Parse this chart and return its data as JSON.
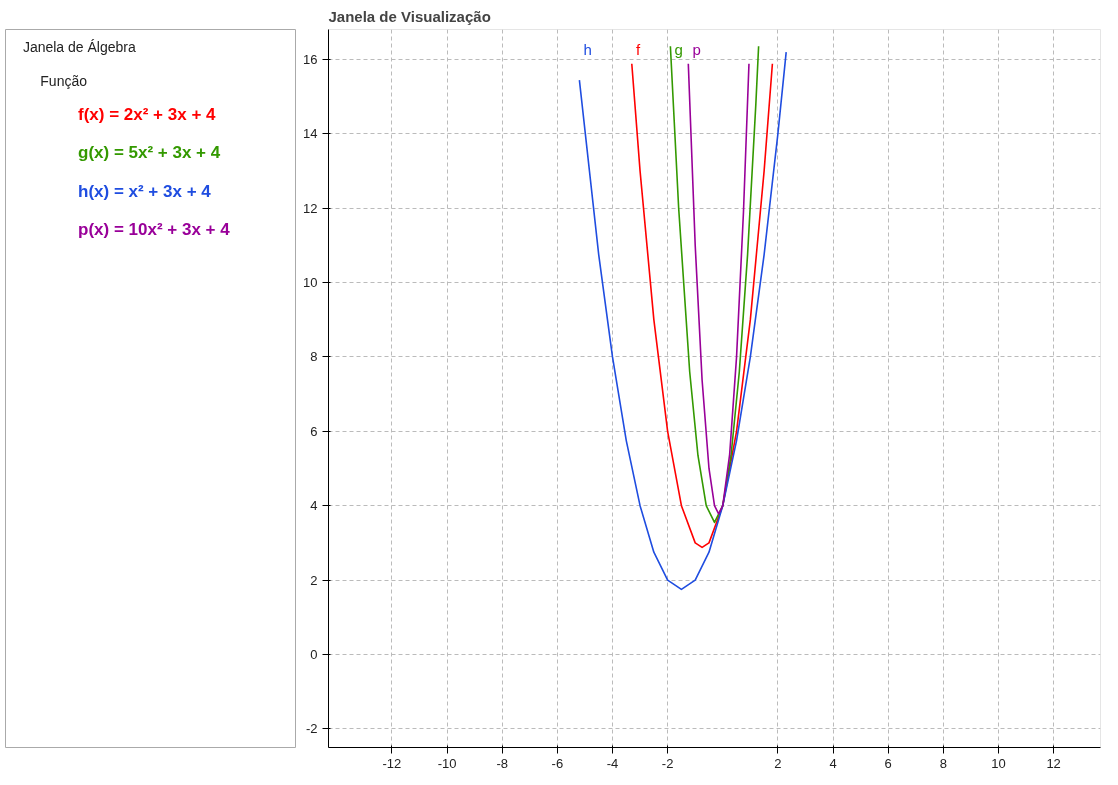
{
  "chart_data": {
    "type": "line",
    "title": "Janela de Visualização",
    "annotations": [
      "Janela de Álgebra",
      "Função",
      "f(x) = 2x² + 3x + 4",
      "g(x) = 5x² + 3x + 4",
      "h(x) = x² + 3x + 4",
      "p(x) = 10x² + 3x + 4"
    ],
    "xlim": [
      -14.3,
      13.7
    ],
    "ylim": [
      -2.5,
      16.8
    ],
    "xticks": [
      -12,
      -10,
      -8,
      -6,
      -4,
      -2,
      2,
      4,
      6,
      8,
      10,
      12
    ],
    "yticks": [
      -2,
      0,
      2,
      4,
      6,
      8,
      10,
      12,
      14,
      16
    ],
    "grid": true,
    "legend": false,
    "marker": "none",
    "line_style": "solid",
    "series": [
      {
        "name": "f",
        "color": "#ff0000",
        "x": [
          -3.3,
          -3,
          -2.5,
          -2,
          -1.5,
          -1,
          -0.75,
          -0.5,
          0,
          0.5,
          1,
          1.5,
          1.8
        ],
        "values": [
          15.88,
          13,
          9,
          6,
          4,
          3,
          2.88,
          3,
          4,
          6,
          9,
          13,
          15.88
        ]
      },
      {
        "name": "g",
        "color": "#339900",
        "x": [
          -1.9,
          -1.6,
          -1.2,
          -0.9,
          -0.6,
          -0.3,
          0,
          0.3,
          0.6,
          0.9,
          1.2,
          1.3
        ],
        "values": [
          16.35,
          12,
          7.6,
          5.35,
          4,
          3.55,
          4,
          5.35,
          7.6,
          10.75,
          14.8,
          16.35
        ]
      },
      {
        "name": "h",
        "color": "#1f4de0",
        "x": [
          -5.2,
          -4.5,
          -4,
          -3.5,
          -3,
          -2.5,
          -2,
          -1.5,
          -1,
          -0.5,
          0,
          0.5,
          1,
          1.5,
          2,
          2.3
        ],
        "values": [
          15.44,
          10.75,
          8,
          5.75,
          4,
          2.75,
          2,
          1.75,
          2,
          2.75,
          4,
          5.75,
          8,
          10.75,
          14,
          16.19
        ]
      },
      {
        "name": "p",
        "color": "#990099",
        "x": [
          -1.25,
          -1,
          -0.75,
          -0.5,
          -0.3,
          -0.15,
          0,
          0.25,
          0.5,
          0.75,
          0.95
        ],
        "values": [
          15.88,
          11,
          7.38,
          5,
          4,
          3.78,
          4,
          5.38,
          8,
          11.88,
          15.88
        ]
      }
    ]
  }
}
